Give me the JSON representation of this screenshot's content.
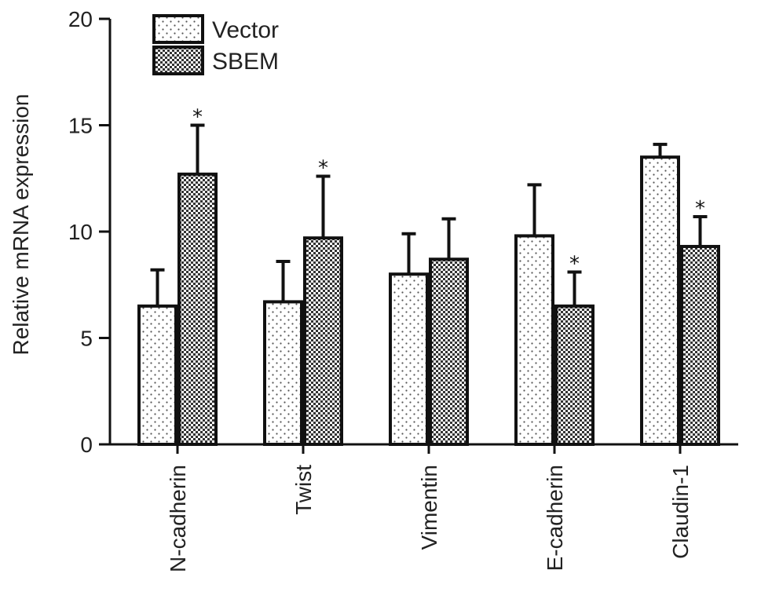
{
  "chart_data": {
    "type": "bar",
    "title": "",
    "xlabel": "",
    "ylabel": "Relative mRNA expression",
    "ylim": [
      0,
      20
    ],
    "yticks": [
      0,
      5,
      10,
      15,
      20
    ],
    "categories": [
      "N-cadherin",
      "Twist",
      "Vimentin",
      "E-cadherin",
      "Claudin-1"
    ],
    "series": [
      {
        "name": "Vector",
        "pattern": "sparse-dots",
        "values": [
          6.5,
          6.7,
          8.0,
          9.8,
          13.5
        ],
        "errors": [
          1.7,
          1.9,
          1.9,
          2.4,
          0.6
        ],
        "significance": [
          "",
          "",
          "",
          "",
          ""
        ]
      },
      {
        "name": "SBEM",
        "pattern": "dense-checker",
        "values": [
          12.7,
          9.7,
          8.7,
          6.5,
          9.3
        ],
        "errors": [
          2.3,
          2.9,
          1.9,
          1.6,
          1.4
        ],
        "significance": [
          "*",
          "*",
          "",
          "*",
          "*"
        ]
      }
    ],
    "legend_position": "top-left",
    "grid": false,
    "colors": {
      "bar_stroke": "#111111",
      "axis": "#111111",
      "pattern_fill": "#333333",
      "background": "#ffffff"
    }
  }
}
